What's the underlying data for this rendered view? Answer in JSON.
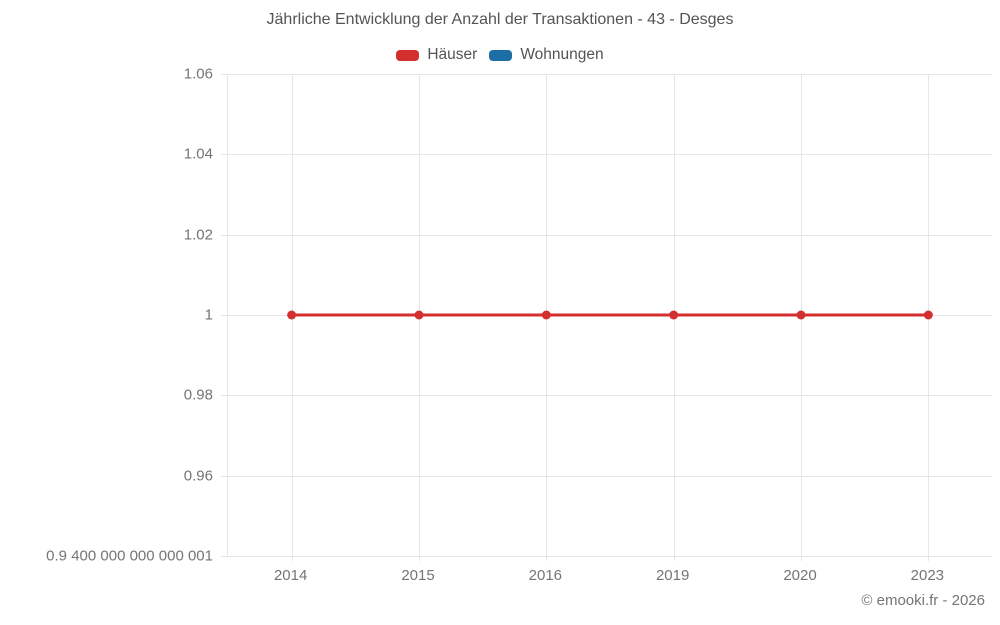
{
  "chart_data": {
    "type": "line",
    "title": "Jährliche Entwicklung der Anzahl der Transaktionen - 43 - Desges",
    "categories": [
      "2014",
      "2015",
      "2016",
      "2019",
      "2020",
      "2023"
    ],
    "series": [
      {
        "name": "Häuser",
        "color": "#d32f2f",
        "values": [
          1,
          1,
          1,
          1,
          1,
          1
        ]
      },
      {
        "name": "Wohnungen",
        "color": "#1c6ea4",
        "values": []
      }
    ],
    "y_ticks": [
      {
        "label": "1.06",
        "value": 1.06
      },
      {
        "label": "1.04",
        "value": 1.04
      },
      {
        "label": "1.02",
        "value": 1.02
      },
      {
        "label": "1",
        "value": 1
      },
      {
        "label": "0.98",
        "value": 0.98
      },
      {
        "label": "0.96",
        "value": 0.96
      },
      {
        "label": "0.9 400 000 000 000 001",
        "value": 0.9400000000000001
      }
    ],
    "ylim": [
      0.9400000000000001,
      1.06
    ],
    "xlabel": "",
    "ylabel": "",
    "grid": true,
    "legend_position": "top",
    "colors": {
      "grid": "#e6e6e6",
      "tick_label": "#757575",
      "title_text": "#545454"
    }
  },
  "attribution": "© emooki.fr - 2026"
}
